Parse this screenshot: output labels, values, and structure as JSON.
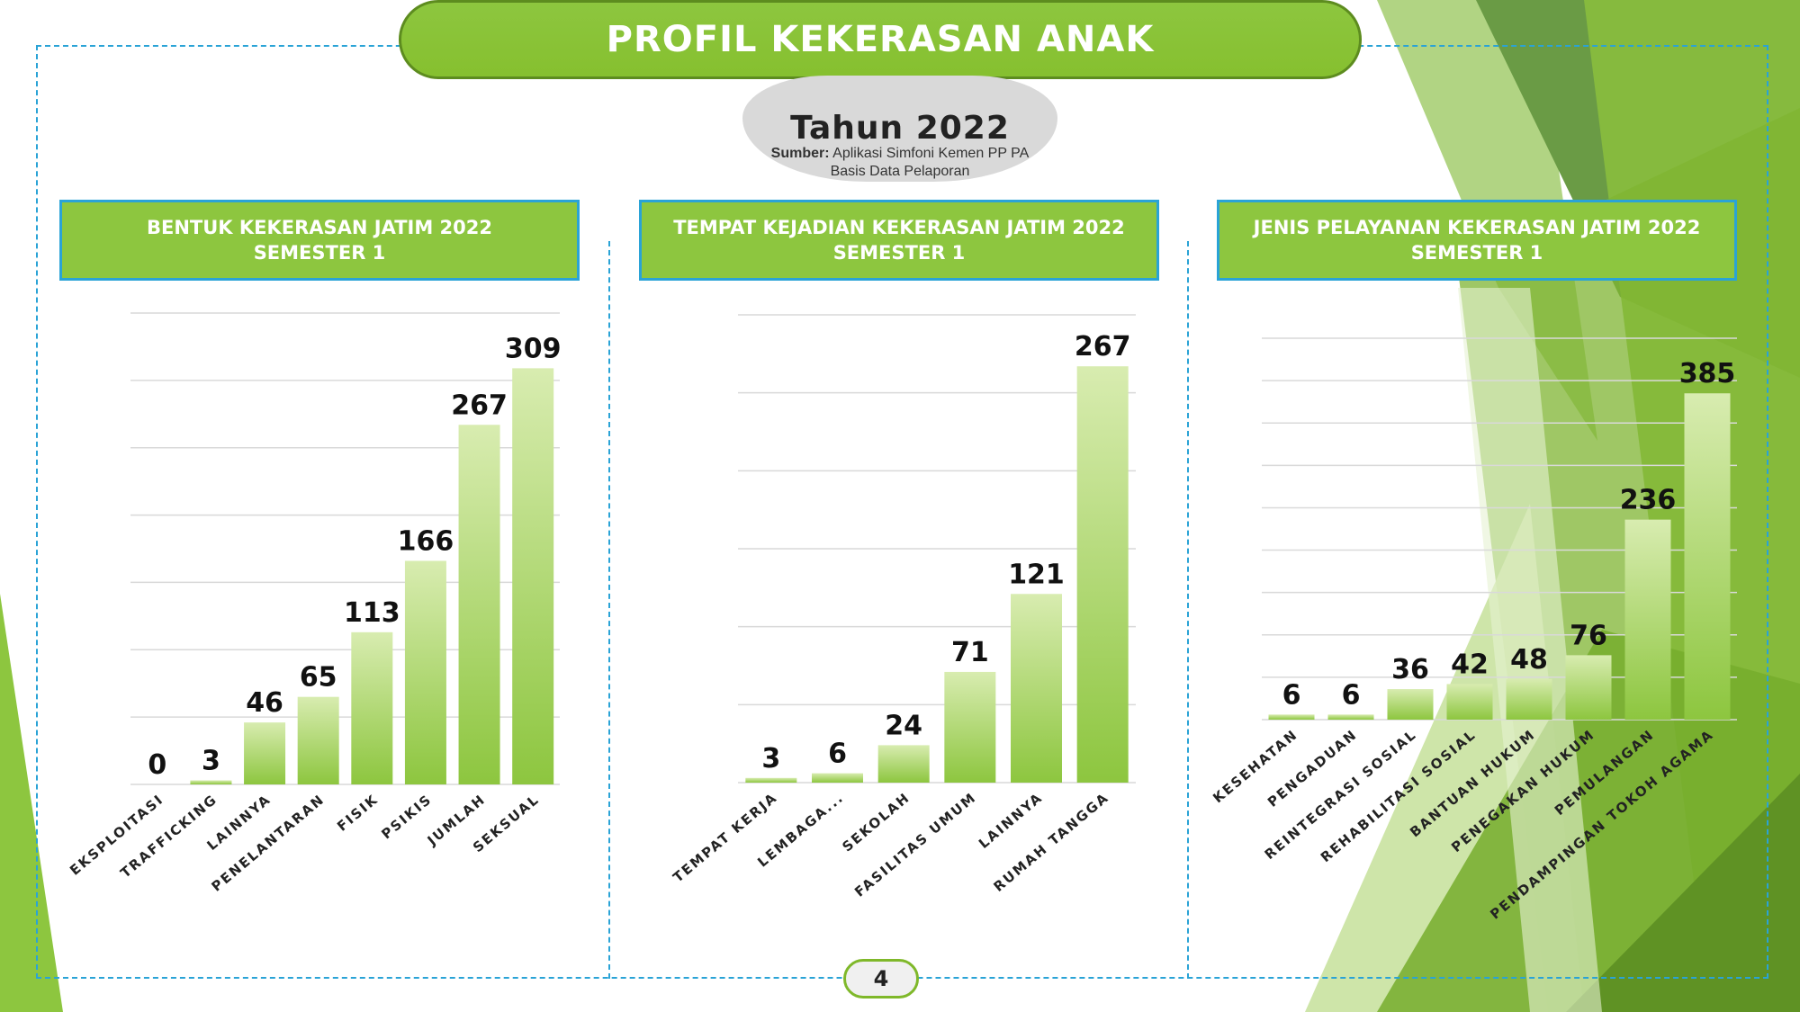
{
  "header": {
    "title": "PROFIL KEKERASAN ANAK",
    "year": "Tahun 2022",
    "source_label": "Sumber:",
    "source_value": "Aplikasi Simfoni Kemen PP PA",
    "source_line2": "Basis Data Pelaporan"
  },
  "panels": [
    {
      "title_line1": "BENTUK KEKERASAN JATIM 2022",
      "title_line2": "SEMESTER 1"
    },
    {
      "title_line1": "TEMPAT KEJADIAN KEKERASAN JATIM 2022",
      "title_line2": "SEMESTER 1"
    },
    {
      "title_line1": "JENIS PELAYANAN KEKERASAN JATIM 2022",
      "title_line2": "SEMESTER 1"
    }
  ],
  "page_number": "4",
  "colors": {
    "bar_top": "#d6ebaa",
    "bar_bottom": "#8dc63f",
    "accent_green": "#8dc63f",
    "border_blue": "#2aa3d6"
  },
  "chart_data": [
    {
      "type": "bar",
      "title": "BENTUK KEKERASAN JATIM 2022 SEMESTER 1",
      "categories": [
        "EKSPLOITASI",
        "TRAFFICKING",
        "LAINNYA",
        "PENELANTARAN",
        "FISIK",
        "PSIKIS",
        "JUMLAH",
        "SEKSUAL"
      ],
      "values": [
        0,
        3,
        46,
        65,
        113,
        166,
        267,
        309
      ],
      "ylim": [
        0,
        350
      ],
      "grid": true,
      "legend": "none"
    },
    {
      "type": "bar",
      "title": "TEMPAT KEJADIAN KEKERASAN JATIM 2022 SEMESTER 1",
      "categories": [
        "TEMPAT KERJA",
        "LEMBAGA...",
        "SEKOLAH",
        "FASILITAS UMUM",
        "LAINNYA",
        "RUMAH TANGGA"
      ],
      "values": [
        3,
        6,
        24,
        71,
        121,
        267
      ],
      "ylim": [
        0,
        300
      ],
      "grid": true,
      "legend": "none"
    },
    {
      "type": "bar",
      "title": "JENIS PELAYANAN KEKERASAN JATIM 2022 SEMESTER 1",
      "categories": [
        "KESEHATAN",
        "PENGADUAN",
        "REINTEGRASI SOSIAL",
        "REHABILITASI SOSIAL",
        "BANTUAN HUKUM",
        "PENEGAKAN HUKUM",
        "PEMULANGAN",
        "PENDAMPINGAN TOKOH AGAMA"
      ],
      "values": [
        6,
        6,
        36,
        42,
        48,
        76,
        236,
        385
      ],
      "ylim": [
        0,
        450
      ],
      "grid": true,
      "legend": "none"
    }
  ]
}
